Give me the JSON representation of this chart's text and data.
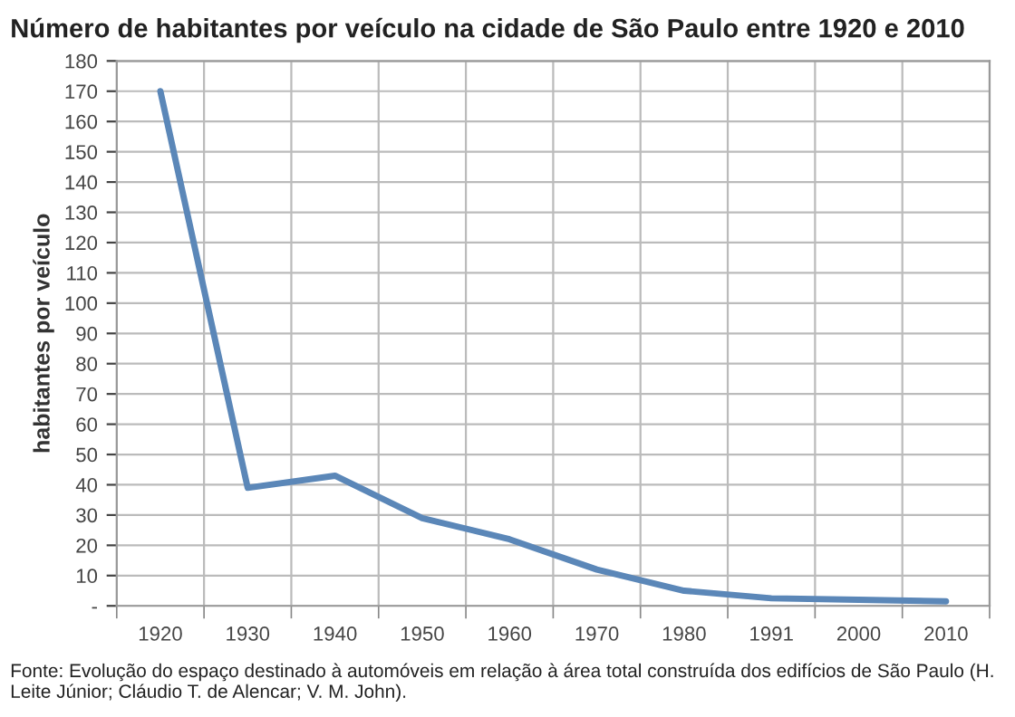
{
  "chart_data": {
    "type": "line",
    "title": "Número de habitantes por veículo na cidade de São Paulo entre 1920 e 2010",
    "ylabel": "habitantes por veículo",
    "categories": [
      "1920",
      "1930",
      "1940",
      "1950",
      "1960",
      "1970",
      "1980",
      "1991",
      "2000",
      "2010"
    ],
    "series": [
      {
        "color": "#5b87b8",
        "values": [
          170,
          39,
          43,
          29,
          22,
          12,
          5,
          2.5,
          2,
          1.5
        ]
      }
    ],
    "ylim": [
      0,
      180
    ],
    "yticks": [
      {
        "value": 0,
        "label": "-"
      },
      10,
      20,
      30,
      40,
      50,
      60,
      70,
      80,
      90,
      100,
      110,
      120,
      130,
      140,
      150,
      160,
      170,
      180
    ],
    "grid": true,
    "marker": "none",
    "line_style": "solid",
    "annotations": [
      "Fonte: Evolução do espaço destinado à automóveis em relação à área total construída dos edifícios de São Paulo (H. Leite Júnior; Cláudio T. de Alencar; V. M. John)."
    ]
  }
}
